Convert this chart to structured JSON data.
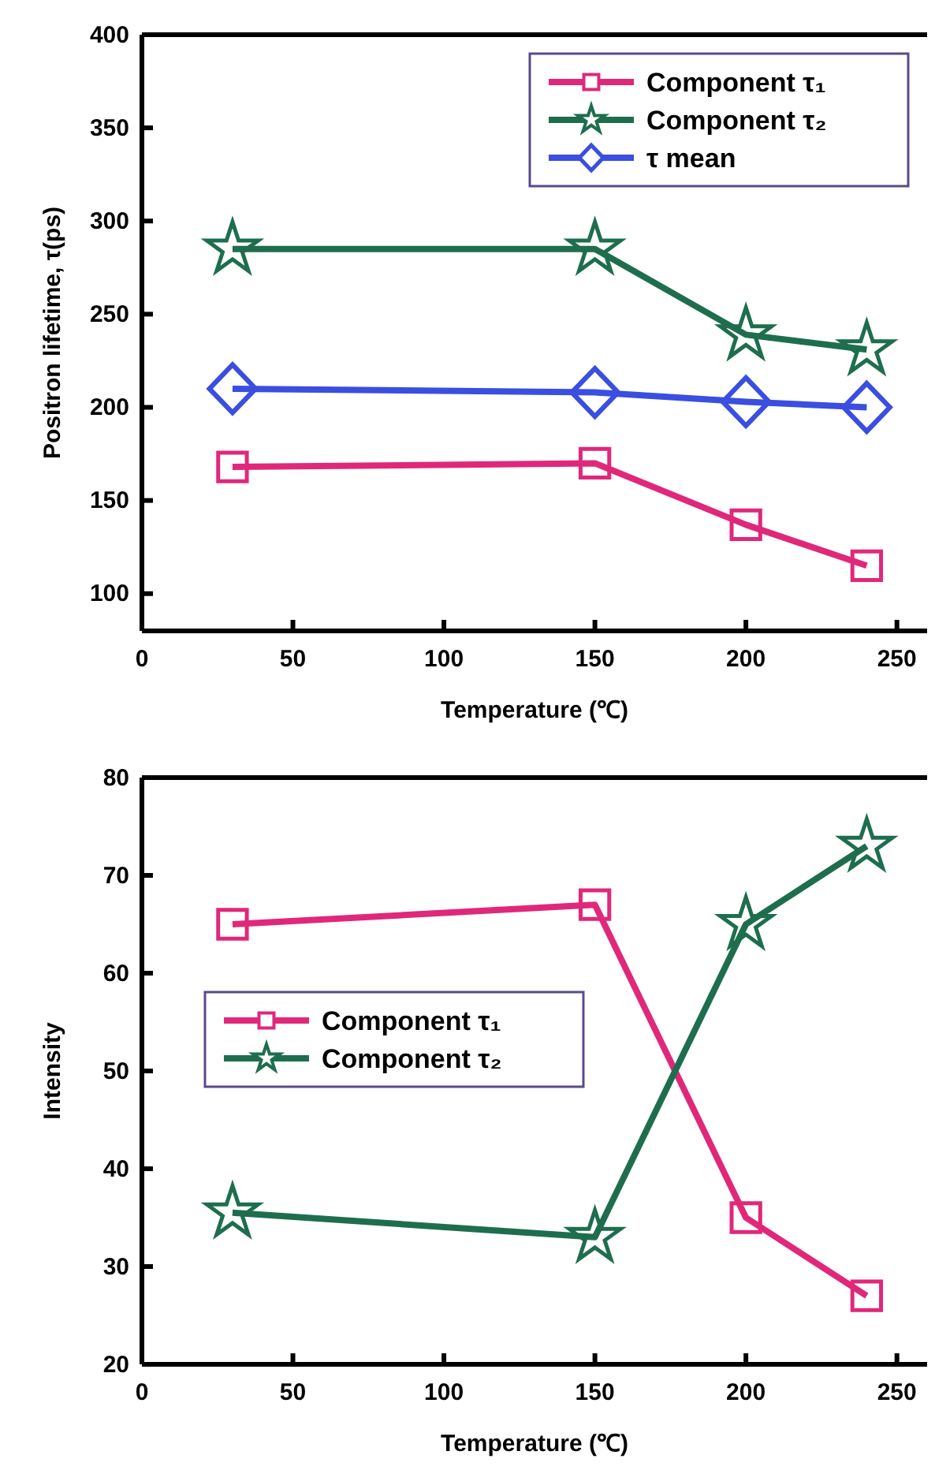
{
  "chart_data": [
    {
      "type": "line",
      "xlabel": "Temperature (℃)",
      "ylabel": "Positron lifetime, τ(ps)",
      "x": [
        30,
        150,
        200,
        240
      ],
      "xlim": [
        0,
        260
      ],
      "xticks": [
        0,
        50,
        100,
        150,
        200,
        250
      ],
      "ylim": [
        80,
        400
      ],
      "yticks": [
        100,
        150,
        200,
        250,
        300,
        350,
        400
      ],
      "legend": "top right",
      "series": [
        {
          "name": "Component τ₁",
          "color": "#e0287a",
          "marker": "square",
          "values": [
            168,
            170,
            137,
            115
          ]
        },
        {
          "name": "Component τ₂",
          "color": "#1e6e4e",
          "marker": "star",
          "values": [
            285,
            285,
            239,
            231
          ]
        },
        {
          "name": "τ mean",
          "color": "#3a4ee0",
          "marker": "diamond",
          "values": [
            210,
            208,
            203,
            200
          ]
        }
      ]
    },
    {
      "type": "line",
      "xlabel": "Temperature (℃)",
      "ylabel": "Intensity",
      "x": [
        30,
        150,
        200,
        240
      ],
      "xlim": [
        0,
        260
      ],
      "xticks": [
        0,
        50,
        100,
        150,
        200,
        250
      ],
      "ylim": [
        20,
        80
      ],
      "yticks": [
        20,
        30,
        40,
        50,
        60,
        70,
        80
      ],
      "legend": "left",
      "series": [
        {
          "name": "Component τ₁",
          "color": "#e0287a",
          "marker": "square",
          "values": [
            65,
            67,
            35,
            27
          ]
        },
        {
          "name": "Component τ₂",
          "color": "#1e6e4e",
          "marker": "star",
          "values": [
            35.5,
            33,
            65,
            73
          ]
        }
      ]
    }
  ]
}
